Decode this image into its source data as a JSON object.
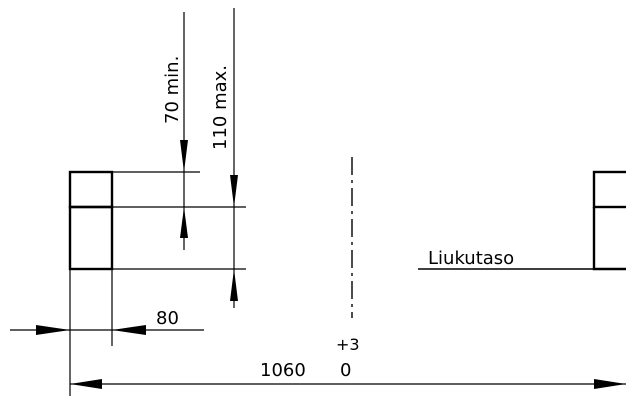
{
  "labels": {
    "dim_70": "70 min.",
    "dim_110": "110 max.",
    "dim_80": "80",
    "dim_1060": "1060",
    "tol_upper": "+3",
    "tol_lower": "0",
    "sliding_plane": "Liukutaso"
  }
}
